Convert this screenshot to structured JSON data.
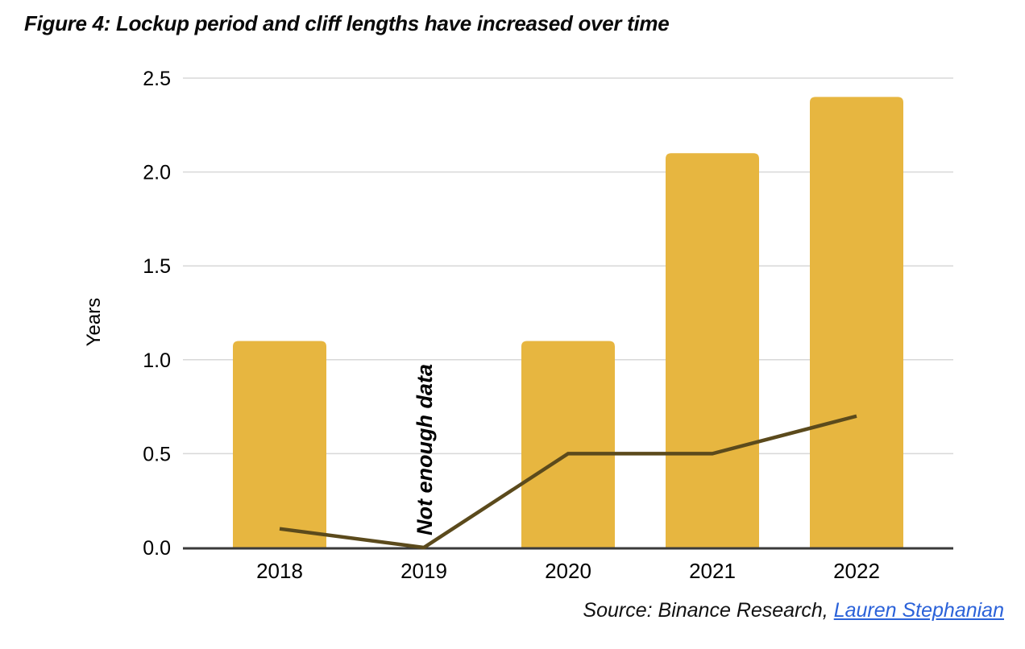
{
  "figure": {
    "title": "Figure 4: Lockup period and cliff lengths have increased over time"
  },
  "source": {
    "prefix": "Source: Binance Research, ",
    "link_label": "Lauren Stephanian"
  },
  "colors": {
    "bar": "#E7B640",
    "line": "#5B4A1C",
    "grid": "#D8D8D8",
    "axis": "#3A3A3A",
    "link": "#2B62D9",
    "text": "#000000"
  },
  "chart_data": {
    "type": "bar",
    "title": "Figure 4: Lockup period and cliff lengths have increased over time",
    "categories": [
      "2018",
      "2019",
      "2020",
      "2021",
      "2022"
    ],
    "series": [
      {
        "name": "bars",
        "type": "bar",
        "values": [
          1.1,
          null,
          1.1,
          2.1,
          2.4
        ]
      },
      {
        "name": "line",
        "type": "line",
        "values": [
          0.1,
          0.0,
          0.5,
          0.5,
          0.7
        ]
      }
    ],
    "xlabel": "",
    "ylabel": "Years",
    "ylim": [
      0,
      2.5
    ],
    "yticks": [
      0,
      0.5,
      1,
      1.5,
      2,
      2.5
    ],
    "ytick_labels": [
      "0.0",
      "0.5",
      "1.0",
      "1.5",
      "2.0",
      "2.5"
    ],
    "annotation": {
      "text": "Not enough data",
      "category": "2019"
    },
    "grid": true,
    "legend": "none"
  }
}
